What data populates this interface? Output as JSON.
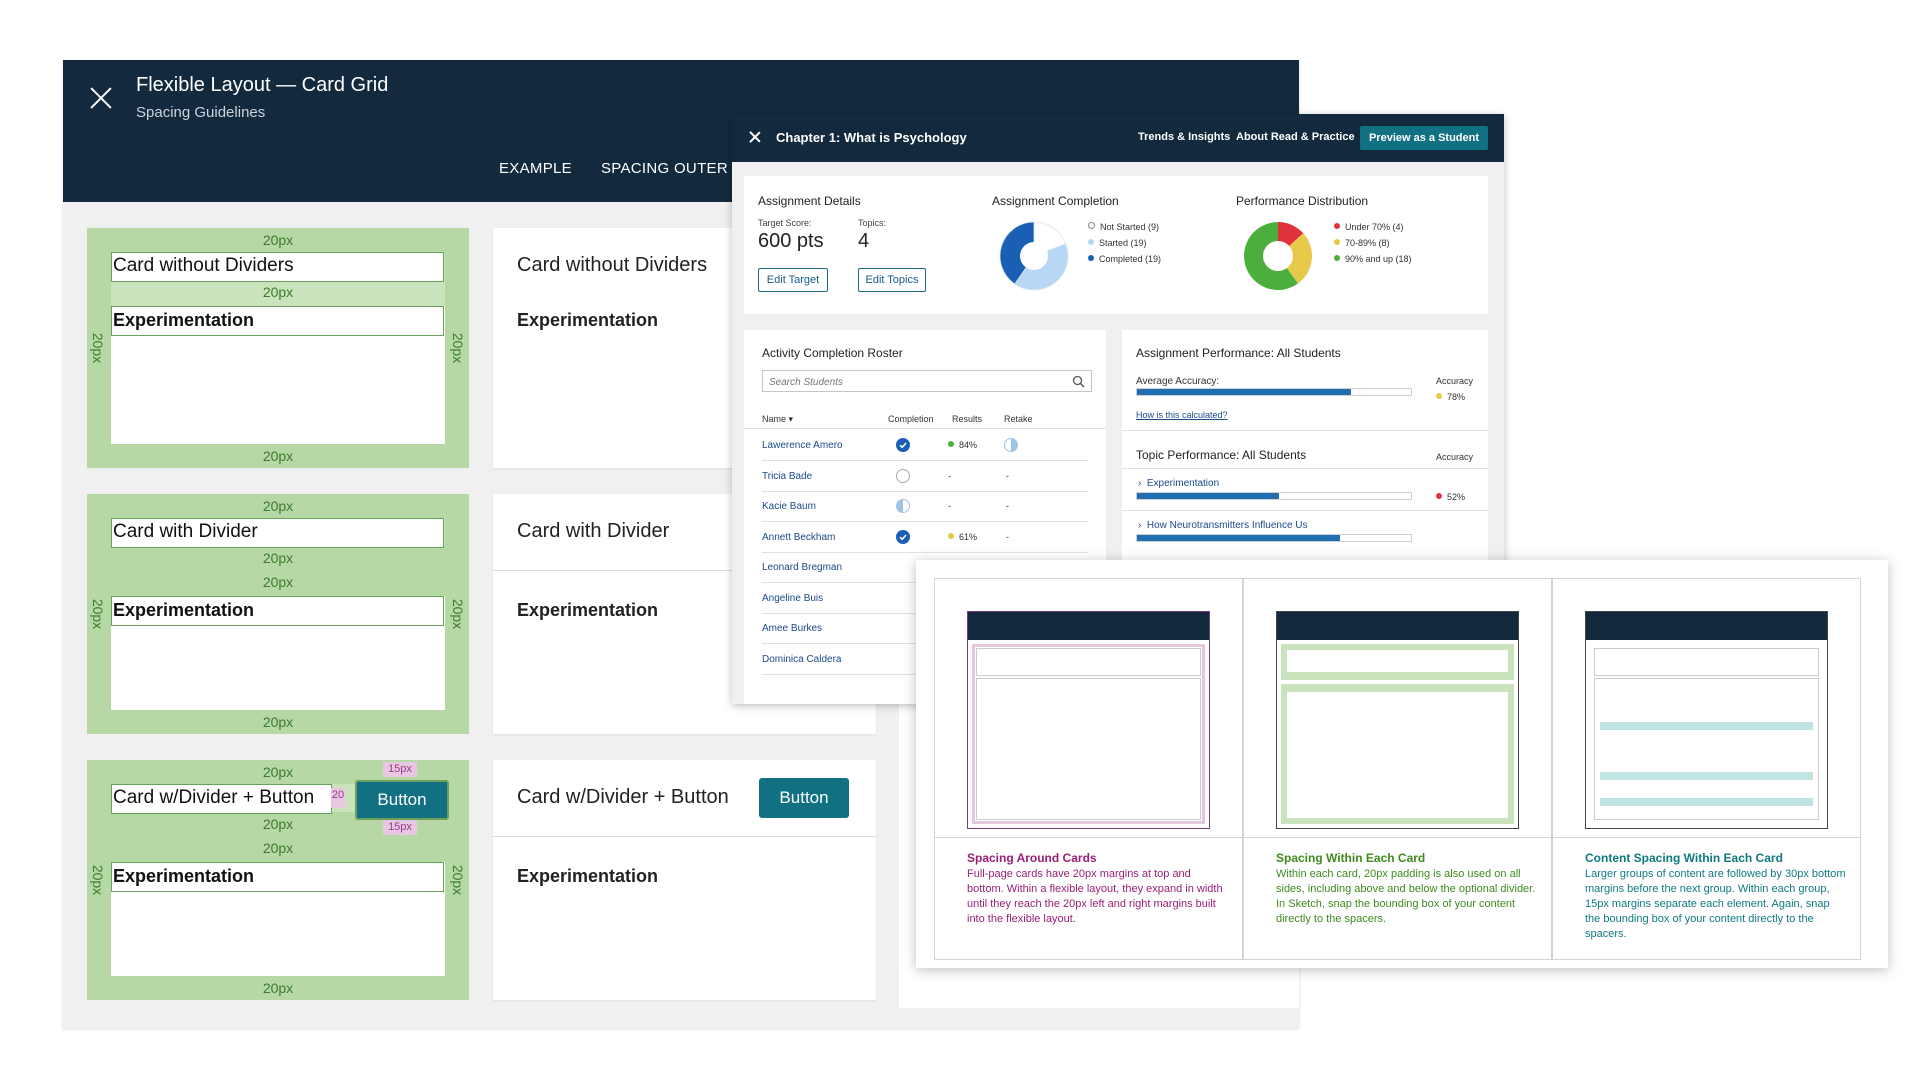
{
  "back_window": {
    "title": "Flexible Layout — Card Grid",
    "subtitle": "Spacing Guidelines",
    "tabs": [
      "EXAMPLE",
      "SPACING OUTER"
    ],
    "spacing_label": "20px",
    "small_spacing_label": "15px",
    "divider_spacing_label": "20",
    "green_cards": [
      {
        "title": "Card without Dividers",
        "body": "Experimentation"
      },
      {
        "title": "Card with Divider",
        "body": "Experimentation"
      },
      {
        "title": "Card w/Divider + Button",
        "body": "Experimentation",
        "button": "Button"
      }
    ],
    "white_cards": [
      {
        "title": "Card without Dividers",
        "body": "Experimentation"
      },
      {
        "title": "Card with Divider",
        "body": "Experimentation"
      },
      {
        "title": "Card w/Divider + Button",
        "body": "Experimentation",
        "button": "Button"
      }
    ]
  },
  "dashboard": {
    "title": "Chapter 1: What is Psychology",
    "nav": [
      "Trends & Insights",
      "About Read & Practice"
    ],
    "preview_button": "Preview as a Student",
    "assignment_details": {
      "heading": "Assignment Details",
      "target_label": "Target Score:",
      "target_value": "600 pts",
      "topics_label": "Topics:",
      "topics_value": "4",
      "edit_target": "Edit Target",
      "edit_topics": "Edit Topics"
    },
    "completion": {
      "heading": "Assignment Completion",
      "legend": [
        "Not Started (9)",
        "Started (19)",
        "Completed (19)"
      ],
      "counts": [
        9,
        19,
        19
      ],
      "colors": [
        "#ffffff",
        "#b8d7f4",
        "#1a5fb4"
      ]
    },
    "performance": {
      "heading": "Performance Distribution",
      "legend": [
        "Under 70% (4)",
        "70-89% (8)",
        "90% and up (18)"
      ],
      "counts": [
        4,
        8,
        18
      ],
      "colors": [
        "#e0323a",
        "#e6c84a",
        "#4caf3d"
      ]
    },
    "roster": {
      "heading": "Activity Completion Roster",
      "search_placeholder": "Search Students",
      "columns": [
        "Name ▾",
        "Completion",
        "Results",
        "Retake"
      ],
      "rows": [
        {
          "name": "Lawerence Amero",
          "completion": "full",
          "result": "84%",
          "result_color": "#4caf3d",
          "retake": "half"
        },
        {
          "name": "Tricia Bade",
          "completion": "empty",
          "result": "-",
          "retake": "-"
        },
        {
          "name": "Kacie Baum",
          "completion": "half",
          "result": "-",
          "retake": "-"
        },
        {
          "name": "Annett Beckham",
          "completion": "full",
          "result": "61%",
          "result_color": "#e6c84a",
          "retake": "-"
        },
        {
          "name": "Leonard Bregman"
        },
        {
          "name": "Angeline Buis"
        },
        {
          "name": "Amee Burkes"
        },
        {
          "name": "Dominica Caldera"
        }
      ]
    },
    "assignment_performance": {
      "heading": "Assignment Performance: All Students",
      "avg_label": "Average Accuracy:",
      "accuracy_label": "Accuracy",
      "avg_value": "78%",
      "avg_fraction": 0.78,
      "link": "How is this calculated?",
      "topic_heading": "Topic Performance: All Students",
      "topics": [
        {
          "name": "Experimentation",
          "value": "52%",
          "fraction": 0.52,
          "color": "#e0323a"
        },
        {
          "name": "How Neurotransmitters Influence Us",
          "fraction": 0.74
        }
      ]
    }
  },
  "comparison": {
    "columns": [
      {
        "title": "Spacing Around Cards",
        "color": "#9a1f78",
        "text": "Full-page cards have 20px margins at top and bottom. Within a flexible layout, they expand in width until they reach the 20px left and right margins built into the flexible layout."
      },
      {
        "title": "Spacing Within Each Card",
        "color": "#3f8a1f",
        "text": "Within each card, 20px padding is also used on all sides, including above and below the optional divider. In Sketch, snap the bounding box of your content directly to the spacers."
      },
      {
        "title": "Content Spacing Within Each Card",
        "color": "#0f7a80",
        "text": "Larger groups of content are followed by 30px bottom margins before the next group. Within each group, 15px margins separate each element. Again, snap the bounding box of your content directly to the spacers."
      }
    ]
  }
}
